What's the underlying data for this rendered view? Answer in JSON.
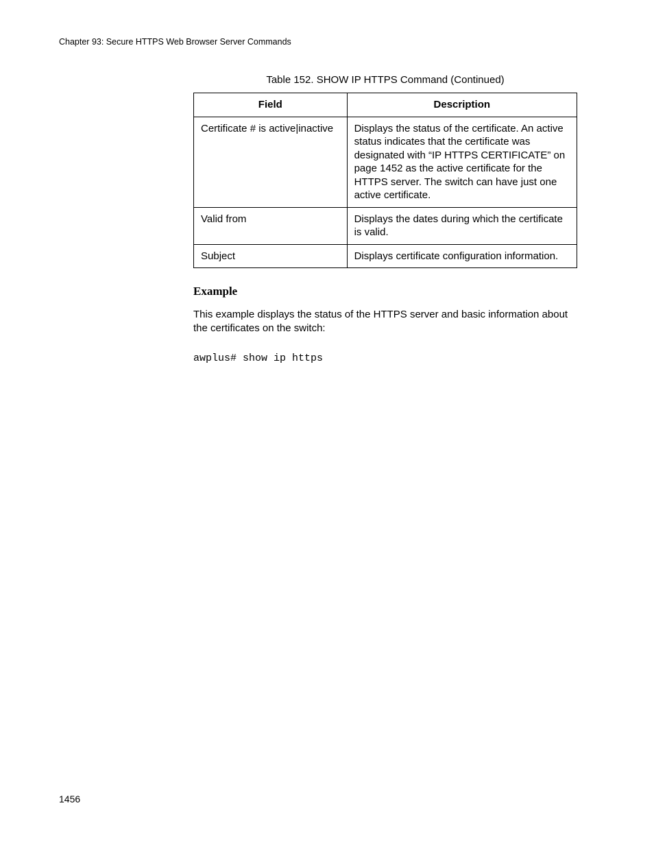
{
  "header": "Chapter 93: Secure HTTPS Web Browser Server Commands",
  "table": {
    "caption": "Table 152. SHOW IP HTTPS Command (Continued)",
    "columns": {
      "field": "Field",
      "description": "Description"
    },
    "rows": [
      {
        "field": "Certificate # is active|inactive",
        "description": "Displays the status of the certificate. An active status indicates that the certificate was designated with “IP HTTPS CERTIFICATE” on page 1452 as the active certificate for the HTTPS server. The switch can have just one active certificate."
      },
      {
        "field": "Valid from",
        "description": "Displays the dates during which the certificate is valid."
      },
      {
        "field": "Subject",
        "description": "Displays certificate configuration information."
      }
    ]
  },
  "example": {
    "heading": "Example",
    "text": "This example displays the status of the HTTPS server and basic information about the certificates on the switch:",
    "code": "awplus# show ip https"
  },
  "pageNumber": "1456"
}
